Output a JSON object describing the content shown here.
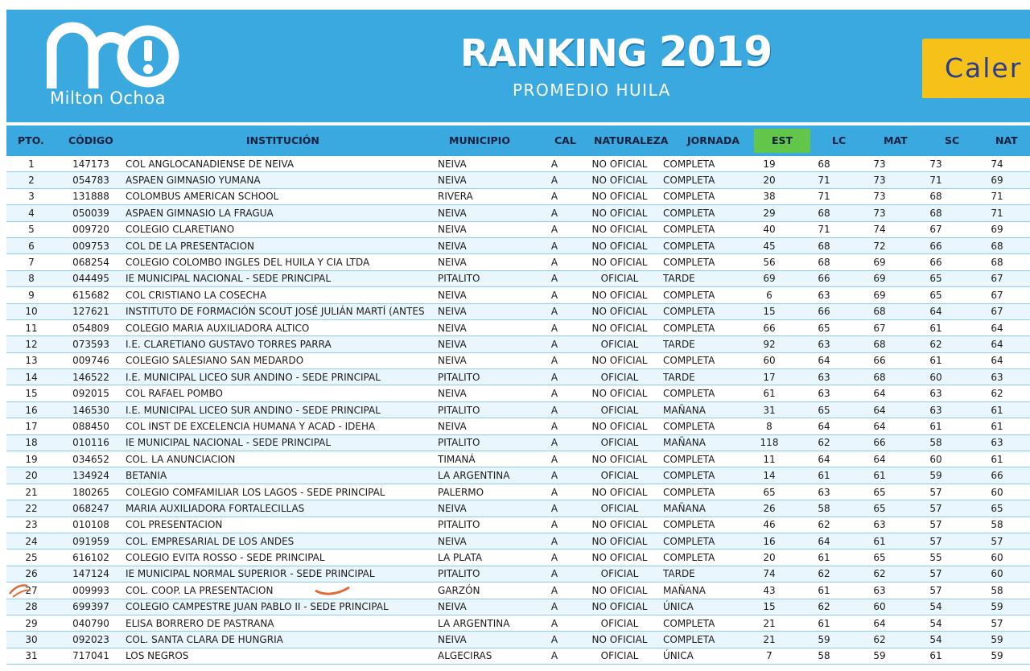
{
  "brand": {
    "logo_text": "Milton Ochoa"
  },
  "heading": {
    "title_word": "RANKING",
    "title_year": "2019",
    "subtitle": "PROMEDIO HUILA"
  },
  "side_tab": {
    "label": "Caler"
  },
  "colors": {
    "banner": "#3aa9e0",
    "est_highlight": "#61c64a",
    "tab": "#f6c21a",
    "tab_text": "#2b3d8c"
  },
  "table": {
    "columns": [
      "PTO.",
      "CÓDIGO",
      "INSTITUCIÓN",
      "MUNICIPIO",
      "CAL",
      "NATURALEZA",
      "JORNADA",
      "EST",
      "LC",
      "MAT",
      "SC",
      "NAT"
    ],
    "rows": [
      [
        "1",
        "147173",
        "COL  ANGLOCANADIENSE DE NEIVA",
        "NEIVA",
        "A",
        "NO OFICIAL",
        "COMPLETA",
        "19",
        "68",
        "73",
        "73",
        "74"
      ],
      [
        "2",
        "054783",
        "ASPAEN GIMNASIO YUMANA",
        "NEIVA",
        "A",
        "NO OFICIAL",
        "COMPLETA",
        "20",
        "71",
        "73",
        "71",
        "69"
      ],
      [
        "3",
        "131888",
        "COLOMBUS AMERICAN SCHOOL",
        "RIVERA",
        "A",
        "NO OFICIAL",
        "COMPLETA",
        "38",
        "71",
        "73",
        "68",
        "71"
      ],
      [
        "4",
        "050039",
        "ASPAEN GIMNASIO LA FRAGUA",
        "NEIVA",
        "A",
        "NO OFICIAL",
        "COMPLETA",
        "29",
        "68",
        "73",
        "68",
        "71"
      ],
      [
        "5",
        "009720",
        "COLEGIO CLARETIANO",
        "NEIVA",
        "A",
        "NO OFICIAL",
        "COMPLETA",
        "40",
        "71",
        "74",
        "67",
        "69"
      ],
      [
        "6",
        "009753",
        "COL DE LA PRESENTACION",
        "NEIVA",
        "A",
        "NO OFICIAL",
        "COMPLETA",
        "45",
        "68",
        "72",
        "66",
        "68"
      ],
      [
        "7",
        "068254",
        "COLEGIO COLOMBO INGLES DEL HUILA Y CIA LTDA",
        "NEIVA",
        "A",
        "NO OFICIAL",
        "COMPLETA",
        "56",
        "68",
        "69",
        "66",
        "68"
      ],
      [
        "8",
        "044495",
        "IE MUNICIPAL NACIONAL - SEDE PRINCIPAL",
        "PITALITO",
        "A",
        "OFICIAL",
        "TARDE",
        "69",
        "66",
        "69",
        "65",
        "67"
      ],
      [
        "9",
        "615682",
        "COL  CRISTIANO LA COSECHA",
        "NEIVA",
        "A",
        "NO OFICIAL",
        "COMPLETA",
        "6",
        "63",
        "69",
        "65",
        "67"
      ],
      [
        "10",
        "127621",
        "INSTITUTO DE FORMACIÓN SCOUT JOSÉ JULIÁN MARTÍ (ANTES",
        "NEIVA",
        "A",
        "NO OFICIAL",
        "COMPLETA",
        "15",
        "66",
        "68",
        "64",
        "67"
      ],
      [
        "11",
        "054809",
        "COLEGIO MARIA AUXILIADORA ALTICO",
        "NEIVA",
        "A",
        "NO OFICIAL",
        "COMPLETA",
        "66",
        "65",
        "67",
        "61",
        "64"
      ],
      [
        "12",
        "073593",
        "I.E. CLARETIANO GUSTAVO TORRES PARRA",
        "NEIVA",
        "A",
        "OFICIAL",
        "TARDE",
        "92",
        "63",
        "68",
        "62",
        "64"
      ],
      [
        "13",
        "009746",
        "COLEGIO SALESIANO SAN MEDARDO",
        "NEIVA",
        "A",
        "NO OFICIAL",
        "COMPLETA",
        "60",
        "64",
        "66",
        "61",
        "64"
      ],
      [
        "14",
        "146522",
        "I.E. MUNICIPAL LICEO SUR ANDINO - SEDE PRINCIPAL",
        "PITALITO",
        "A",
        "OFICIAL",
        "TARDE",
        "17",
        "63",
        "68",
        "60",
        "63"
      ],
      [
        "15",
        "092015",
        "COL RAFAEL POMBO",
        "NEIVA",
        "A",
        "NO OFICIAL",
        "COMPLETA",
        "61",
        "63",
        "64",
        "63",
        "62"
      ],
      [
        "16",
        "146530",
        "I.E. MUNICIPAL LICEO SUR ANDINO - SEDE PRINCIPAL",
        "PITALITO",
        "A",
        "OFICIAL",
        "MAÑANA",
        "31",
        "65",
        "64",
        "63",
        "61"
      ],
      [
        "17",
        "088450",
        "COL INST DE EXCELENCIA HUMANA Y ACAD - IDEHA",
        "NEIVA",
        "A",
        "NO OFICIAL",
        "COMPLETA",
        "8",
        "64",
        "64",
        "61",
        "61"
      ],
      [
        "18",
        "010116",
        "IE MUNICIPAL NACIONAL - SEDE PRINCIPAL",
        "PITALITO",
        "A",
        "OFICIAL",
        "MAÑANA",
        "118",
        "62",
        "66",
        "58",
        "63"
      ],
      [
        "19",
        "034652",
        "COL. LA ANUNCIACION",
        "TIMANÁ",
        "A",
        "NO OFICIAL",
        "COMPLETA",
        "11",
        "64",
        "64",
        "60",
        "61"
      ],
      [
        "20",
        "134924",
        "BETANIA",
        "LA ARGENTINA",
        "A",
        "OFICIAL",
        "COMPLETA",
        "14",
        "61",
        "61",
        "59",
        "66"
      ],
      [
        "21",
        "180265",
        "COLEGIO COMFAMILIAR LOS LAGOS - SEDE PRINCIPAL",
        "PALERMO",
        "A",
        "NO OFICIAL",
        "COMPLETA",
        "65",
        "63",
        "65",
        "57",
        "60"
      ],
      [
        "22",
        "068247",
        "MARIA AUXILIADORA FORTALECILLAS",
        "NEIVA",
        "A",
        "OFICIAL",
        "MAÑANA",
        "26",
        "58",
        "65",
        "57",
        "65"
      ],
      [
        "23",
        "010108",
        "COL PRESENTACION",
        "PITALITO",
        "A",
        "NO OFICIAL",
        "COMPLETA",
        "46",
        "62",
        "63",
        "57",
        "58"
      ],
      [
        "24",
        "091959",
        "COL. EMPRESARIAL DE LOS ANDES",
        "NEIVA",
        "A",
        "NO OFICIAL",
        "COMPLETA",
        "16",
        "64",
        "61",
        "57",
        "57"
      ],
      [
        "25",
        "616102",
        "COLEGIO EVITA ROSSO - SEDE PRINCIPAL",
        "LA PLATA",
        "A",
        "NO OFICIAL",
        "COMPLETA",
        "20",
        "61",
        "65",
        "55",
        "60"
      ],
      [
        "26",
        "147124",
        "IE MUNICIPAL NORMAL SUPERIOR - SEDE PRINCIPAL",
        "PITALITO",
        "A",
        "OFICIAL",
        "TARDE",
        "74",
        "62",
        "62",
        "57",
        "60"
      ],
      [
        "27",
        "009993",
        "COL. COOP. LA PRESENTACION",
        "GARZÓN",
        "A",
        "NO OFICIAL",
        "MAÑANA",
        "43",
        "61",
        "63",
        "57",
        "58"
      ],
      [
        "28",
        "699397",
        "COLEGIO CAMPESTRE JUAN PABLO II - SEDE PRINCIPAL",
        "NEIVA",
        "A",
        "NO OFICIAL",
        "ÚNICA",
        "15",
        "62",
        "60",
        "54",
        "59"
      ],
      [
        "29",
        "040790",
        "ELISA BORRERO DE PASTRANA",
        "LA ARGENTINA",
        "A",
        "OFICIAL",
        "COMPLETA",
        "21",
        "61",
        "64",
        "54",
        "57"
      ],
      [
        "30",
        "092023",
        "COL. SANTA CLARA DE HUNGRIA",
        "NEIVA",
        "A",
        "NO OFICIAL",
        "COMPLETA",
        "21",
        "59",
        "62",
        "54",
        "59"
      ],
      [
        "31",
        "717041",
        "LOS NEGROS",
        "ALGECIRAS",
        "A",
        "OFICIAL",
        "ÚNICA",
        "7",
        "58",
        "59",
        "61",
        "59"
      ]
    ]
  }
}
